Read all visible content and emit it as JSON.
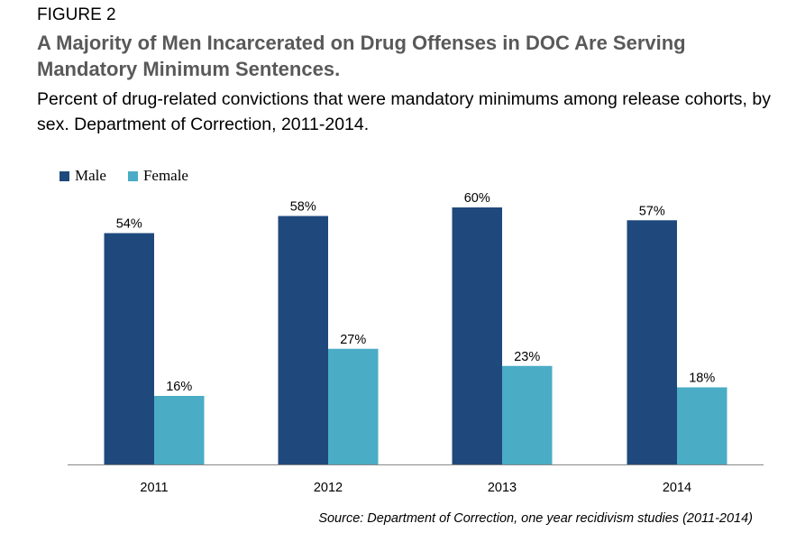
{
  "figure_label": "FIGURE 2",
  "chart_data": {
    "type": "bar",
    "title": "A Majority of Men Incarcerated on Drug Offenses in DOC Are Serving Mandatory Minimum Sentences.",
    "subtitle": "Percent of drug-related convictions that were mandatory minimums among release cohorts, by sex. Department of Correction, 2011-2014.",
    "categories": [
      "2011",
      "2012",
      "2013",
      "2014"
    ],
    "series": [
      {
        "name": "Male",
        "values": [
          54,
          58,
          60,
          57
        ],
        "labels": [
          "54%",
          "58%",
          "60%",
          "57%"
        ],
        "color": "#1f497d"
      },
      {
        "name": "Female",
        "values": [
          16,
          27,
          23,
          18
        ],
        "labels": [
          "16%",
          "27%",
          "23%",
          "18%"
        ],
        "color": "#4bacc6"
      }
    ],
    "xlabel": "",
    "ylabel": "",
    "ylim": [
      0,
      60
    ],
    "grid": false,
    "legend_position": "top-left",
    "y_axis_shown": false
  },
  "source": "Source: Department of Correction, one year recidivism studies (2011-2014)"
}
